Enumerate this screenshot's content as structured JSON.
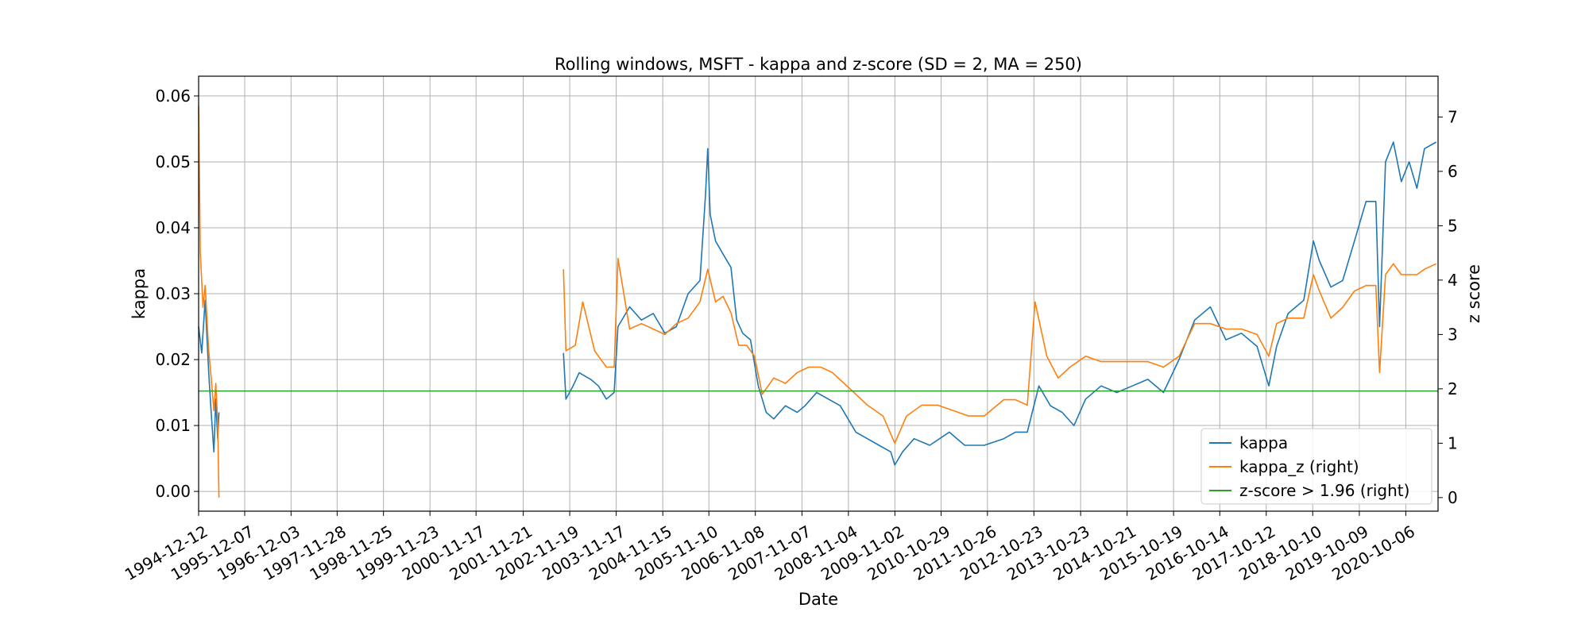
{
  "chart_data": {
    "type": "line",
    "title": "Rolling windows, MSFT - kappa and z-score (SD = 2, MA = 250)",
    "xlabel": "Date",
    "ylabel": "kappa",
    "ylabel_right": "z score",
    "grid": true,
    "legend_position": "lower-right",
    "xlim": [
      "1994-12-12",
      "2021-06-15"
    ],
    "ylim": [
      -0.003,
      0.063
    ],
    "ylim_right": [
      -0.25,
      7.75
    ],
    "x_ticks": [
      "1994-12-12",
      "1995-12-07",
      "1996-12-03",
      "1997-11-28",
      "1998-11-25",
      "1999-11-23",
      "2000-11-17",
      "2001-11-21",
      "2002-11-19",
      "2003-11-17",
      "2004-11-15",
      "2005-11-10",
      "2006-11-08",
      "2007-11-07",
      "2008-11-04",
      "2009-11-02",
      "2010-10-29",
      "2011-10-26",
      "2012-10-23",
      "2013-10-23",
      "2014-10-21",
      "2015-10-19",
      "2016-10-14",
      "2017-10-12",
      "2018-10-10",
      "2019-10-09",
      "2020-10-06"
    ],
    "y_ticks": [
      "0.00",
      "0.01",
      "0.02",
      "0.03",
      "0.04",
      "0.05",
      "0.06"
    ],
    "y_tick_values": [
      0,
      0.01,
      0.02,
      0.03,
      0.04,
      0.05,
      0.06
    ],
    "y_ticks_right": [
      "0",
      "1",
      "2",
      "3",
      "4",
      "5",
      "6",
      "7"
    ],
    "y_tick_values_right": [
      0,
      1,
      2,
      3,
      4,
      5,
      6,
      7
    ],
    "series": [
      {
        "name": "kappa",
        "axis": "left",
        "color": "#1f77b4",
        "segments": [
          [
            [
              "1994-12-12",
              0.025
            ],
            [
              "1995-01-05",
              0.021
            ],
            [
              "1995-02-01",
              0.029
            ],
            [
              "1995-03-01",
              0.018
            ],
            [
              "1995-03-20",
              0.012
            ],
            [
              "1995-04-10",
              0.006
            ],
            [
              "1995-04-25",
              0.014
            ],
            [
              "1995-05-10",
              0.008
            ],
            [
              "1995-05-20",
              0.012
            ]
          ],
          [
            [
              "2002-10-01",
              0.021
            ],
            [
              "2002-10-20",
              0.014
            ],
            [
              "2002-12-15",
              0.016
            ],
            [
              "2003-02-01",
              0.018
            ],
            [
              "2003-05-01",
              0.017
            ],
            [
              "2003-07-01",
              0.016
            ],
            [
              "2003-09-01",
              0.014
            ],
            [
              "2003-11-01",
              0.015
            ],
            [
              "2003-12-01",
              0.025
            ],
            [
              "2004-03-01",
              0.028
            ],
            [
              "2004-06-01",
              0.026
            ],
            [
              "2004-09-01",
              0.027
            ],
            [
              "2004-12-01",
              0.024
            ],
            [
              "2005-03-01",
              0.025
            ],
            [
              "2005-06-01",
              0.03
            ],
            [
              "2005-09-01",
              0.032
            ],
            [
              "2005-10-15",
              0.045
            ],
            [
              "2005-11-01",
              0.052
            ],
            [
              "2005-11-20",
              0.042
            ],
            [
              "2006-01-01",
              0.038
            ],
            [
              "2006-03-01",
              0.036
            ],
            [
              "2006-05-01",
              0.034
            ],
            [
              "2006-06-15",
              0.026
            ],
            [
              "2006-08-01",
              0.024
            ],
            [
              "2006-10-01",
              0.023
            ],
            [
              "2006-12-01",
              0.016
            ],
            [
              "2007-02-01",
              0.012
            ],
            [
              "2007-04-01",
              0.011
            ],
            [
              "2007-07-01",
              0.013
            ],
            [
              "2007-10-01",
              0.012
            ],
            [
              "2007-12-01",
              0.013
            ],
            [
              "2008-03-01",
              0.015
            ],
            [
              "2008-06-01",
              0.014
            ],
            [
              "2008-09-01",
              0.013
            ],
            [
              "2008-11-01",
              0.011
            ],
            [
              "2009-01-01",
              0.009
            ],
            [
              "2009-04-01",
              0.008
            ],
            [
              "2009-07-01",
              0.007
            ],
            [
              "2009-10-01",
              0.006
            ],
            [
              "2009-11-01",
              0.004
            ],
            [
              "2010-01-01",
              0.006
            ],
            [
              "2010-04-01",
              0.008
            ],
            [
              "2010-08-01",
              0.007
            ],
            [
              "2011-01-01",
              0.009
            ],
            [
              "2011-05-01",
              0.007
            ],
            [
              "2011-10-01",
              0.007
            ],
            [
              "2012-03-01",
              0.008
            ],
            [
              "2012-06-01",
              0.009
            ],
            [
              "2012-09-01",
              0.009
            ],
            [
              "2012-12-01",
              0.016
            ],
            [
              "2013-03-01",
              0.013
            ],
            [
              "2013-06-01",
              0.012
            ],
            [
              "2013-09-01",
              0.01
            ],
            [
              "2013-12-01",
              0.014
            ],
            [
              "2014-04-01",
              0.016
            ],
            [
              "2014-08-01",
              0.015
            ],
            [
              "2014-12-01",
              0.016
            ],
            [
              "2015-04-01",
              0.017
            ],
            [
              "2015-08-01",
              0.015
            ],
            [
              "2015-12-01",
              0.02
            ],
            [
              "2016-04-01",
              0.026
            ],
            [
              "2016-08-01",
              0.028
            ],
            [
              "2016-12-01",
              0.023
            ],
            [
              "2017-04-01",
              0.024
            ],
            [
              "2017-08-01",
              0.022
            ],
            [
              "2017-11-01",
              0.016
            ],
            [
              "2018-01-01",
              0.022
            ],
            [
              "2018-04-01",
              0.027
            ],
            [
              "2018-08-01",
              0.029
            ],
            [
              "2018-10-15",
              0.038
            ],
            [
              "2018-12-01",
              0.035
            ],
            [
              "2019-03-01",
              0.031
            ],
            [
              "2019-06-01",
              0.032
            ],
            [
              "2019-09-01",
              0.038
            ],
            [
              "2019-12-01",
              0.044
            ],
            [
              "2020-02-15",
              0.044
            ],
            [
              "2020-03-15",
              0.025
            ],
            [
              "2020-05-01",
              0.05
            ],
            [
              "2020-07-01",
              0.053
            ],
            [
              "2020-09-01",
              0.047
            ],
            [
              "2020-11-01",
              0.05
            ],
            [
              "2021-01-01",
              0.046
            ],
            [
              "2021-03-01",
              0.052
            ],
            [
              "2021-06-01",
              0.053
            ]
          ]
        ]
      },
      {
        "name": "kappa_z (right)",
        "axis": "right",
        "color": "#ff7f0e",
        "segments": [
          [
            [
              "1994-12-12",
              7.2
            ],
            [
              "1994-12-25",
              4.5
            ],
            [
              "1995-01-15",
              3.5
            ],
            [
              "1995-02-01",
              3.9
            ],
            [
              "1995-03-01",
              2.7
            ],
            [
              "1995-03-20",
              2.2
            ],
            [
              "1995-04-10",
              1.6
            ],
            [
              "1995-04-25",
              2.1
            ],
            [
              "1995-05-10",
              1.4
            ],
            [
              "1995-05-20",
              0.0
            ]
          ],
          [
            [
              "2002-10-01",
              4.2
            ],
            [
              "2002-10-20",
              2.7
            ],
            [
              "2003-01-01",
              2.8
            ],
            [
              "2003-03-01",
              3.6
            ],
            [
              "2003-06-01",
              2.7
            ],
            [
              "2003-09-01",
              2.4
            ],
            [
              "2003-11-01",
              2.4
            ],
            [
              "2003-12-01",
              4.4
            ],
            [
              "2004-03-01",
              3.1
            ],
            [
              "2004-06-01",
              3.2
            ],
            [
              "2004-09-01",
              3.1
            ],
            [
              "2004-12-01",
              3.0
            ],
            [
              "2005-03-01",
              3.2
            ],
            [
              "2005-06-01",
              3.3
            ],
            [
              "2005-09-01",
              3.6
            ],
            [
              "2005-11-01",
              4.2
            ],
            [
              "2006-01-01",
              3.6
            ],
            [
              "2006-03-01",
              3.7
            ],
            [
              "2006-05-01",
              3.4
            ],
            [
              "2006-07-01",
              2.8
            ],
            [
              "2006-09-01",
              2.8
            ],
            [
              "2006-11-01",
              2.6
            ],
            [
              "2007-01-01",
              1.9
            ],
            [
              "2007-04-01",
              2.2
            ],
            [
              "2007-07-01",
              2.1
            ],
            [
              "2007-10-01",
              2.3
            ],
            [
              "2008-01-01",
              2.4
            ],
            [
              "2008-04-01",
              2.4
            ],
            [
              "2008-07-01",
              2.3
            ],
            [
              "2008-10-01",
              2.1
            ],
            [
              "2009-01-01",
              1.9
            ],
            [
              "2009-04-01",
              1.7
            ],
            [
              "2009-08-01",
              1.5
            ],
            [
              "2009-11-01",
              1.0
            ],
            [
              "2010-02-01",
              1.5
            ],
            [
              "2010-06-01",
              1.7
            ],
            [
              "2010-10-01",
              1.7
            ],
            [
              "2011-02-01",
              1.6
            ],
            [
              "2011-06-01",
              1.5
            ],
            [
              "2011-10-01",
              1.5
            ],
            [
              "2012-03-01",
              1.8
            ],
            [
              "2012-06-01",
              1.8
            ],
            [
              "2012-09-01",
              1.7
            ],
            [
              "2012-11-01",
              3.6
            ],
            [
              "2013-02-01",
              2.6
            ],
            [
              "2013-05-01",
              2.2
            ],
            [
              "2013-08-01",
              2.4
            ],
            [
              "2013-12-01",
              2.6
            ],
            [
              "2014-04-01",
              2.5
            ],
            [
              "2014-08-01",
              2.5
            ],
            [
              "2014-12-01",
              2.5
            ],
            [
              "2015-04-01",
              2.5
            ],
            [
              "2015-08-01",
              2.4
            ],
            [
              "2015-12-01",
              2.6
            ],
            [
              "2016-04-01",
              3.2
            ],
            [
              "2016-08-01",
              3.2
            ],
            [
              "2016-12-01",
              3.1
            ],
            [
              "2017-04-01",
              3.1
            ],
            [
              "2017-08-01",
              3.0
            ],
            [
              "2017-11-01",
              2.6
            ],
            [
              "2018-01-01",
              3.2
            ],
            [
              "2018-04-01",
              3.3
            ],
            [
              "2018-08-01",
              3.3
            ],
            [
              "2018-10-15",
              4.1
            ],
            [
              "2018-12-01",
              3.8
            ],
            [
              "2019-03-01",
              3.3
            ],
            [
              "2019-06-01",
              3.5
            ],
            [
              "2019-09-01",
              3.8
            ],
            [
              "2019-12-01",
              3.9
            ],
            [
              "2020-02-15",
              3.9
            ],
            [
              "2020-03-15",
              2.3
            ],
            [
              "2020-05-01",
              4.1
            ],
            [
              "2020-07-01",
              4.3
            ],
            [
              "2020-09-01",
              4.1
            ],
            [
              "2020-11-01",
              4.1
            ],
            [
              "2021-01-01",
              4.1
            ],
            [
              "2021-03-01",
              4.2
            ],
            [
              "2021-06-01",
              4.3
            ]
          ]
        ]
      },
      {
        "name": "z-score > 1.96 (right)",
        "axis": "right",
        "color": "#2ca02c",
        "value": 1.96
      }
    ]
  }
}
